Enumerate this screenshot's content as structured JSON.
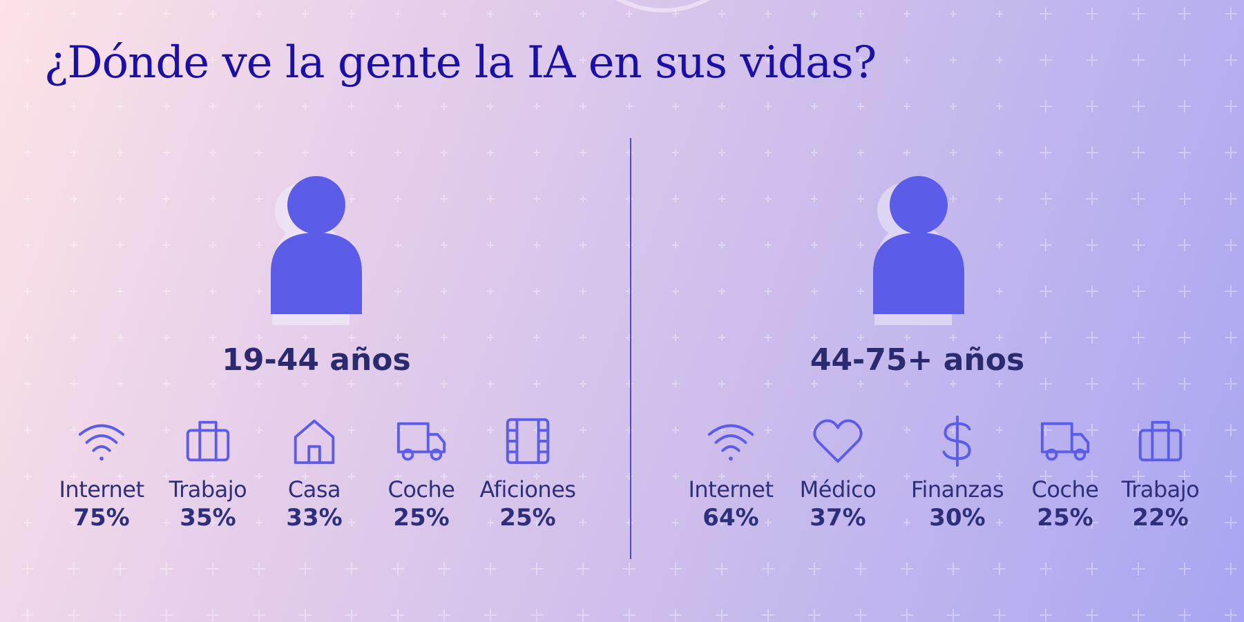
{
  "title": "¿Dónde ve la gente la IA en sus vidas?",
  "colors": {
    "accent": "#5b5ce8",
    "title": "#1a0fa6",
    "text": "#2e2f7a"
  },
  "chart_data": {
    "type": "table",
    "title": "¿Dónde ve la gente la IA en sus vidas?",
    "groups": [
      {
        "label": "19-44 años",
        "categories": [
          "Internet",
          "Trabajo",
          "Casa",
          "Coche",
          "Aficiones"
        ],
        "values": [
          75,
          35,
          33,
          25,
          25
        ],
        "value_labels": [
          "75%",
          "35%",
          "33%",
          "25%",
          "25%"
        ],
        "icons": [
          "wifi-icon",
          "briefcase-icon",
          "house-icon",
          "truck-icon",
          "film-icon"
        ]
      },
      {
        "label": "44-75+ años",
        "categories": [
          "Internet",
          "Médico",
          "Finanzas",
          "Coche",
          "Trabajo"
        ],
        "values": [
          64,
          37,
          30,
          25,
          22
        ],
        "value_labels": [
          "64%",
          "37%",
          "30%",
          "25%",
          "22%"
        ],
        "icons": [
          "wifi-icon",
          "heart-icon",
          "dollar-icon",
          "truck-icon",
          "briefcase-icon"
        ]
      }
    ]
  }
}
